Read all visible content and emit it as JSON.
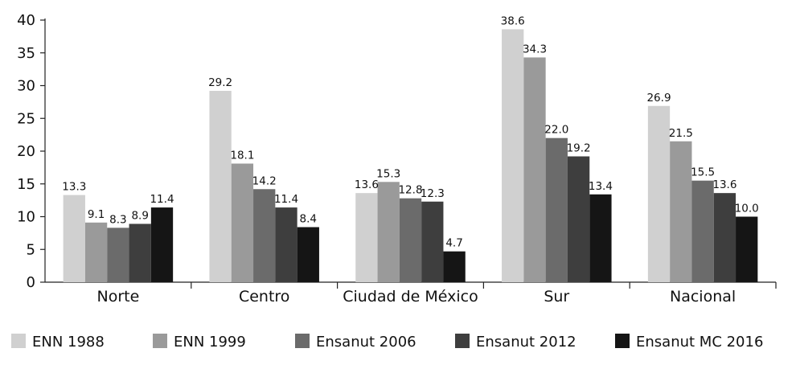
{
  "chart_data": {
    "type": "bar",
    "categories": [
      "Norte",
      "Centro",
      "Ciudad de México",
      "Sur",
      "Nacional"
    ],
    "series": [
      {
        "name": "ENN 1988",
        "color": "#d0d0d0",
        "values": [
          13.3,
          29.2,
          13.6,
          38.6,
          26.9
        ]
      },
      {
        "name": "ENN 1999",
        "color": "#9a9a9a",
        "values": [
          9.1,
          18.1,
          15.3,
          34.3,
          21.5
        ]
      },
      {
        "name": "Ensanut 2006",
        "color": "#6b6b6b",
        "values": [
          8.3,
          14.2,
          12.8,
          22.0,
          15.5
        ]
      },
      {
        "name": "Ensanut 2012",
        "color": "#3e3e3e",
        "values": [
          8.9,
          11.4,
          12.3,
          19.2,
          13.6
        ]
      },
      {
        "name": "Ensanut MC 2016",
        "color": "#151515",
        "values": [
          11.4,
          8.4,
          4.7,
          13.4,
          10.0
        ]
      }
    ],
    "value_labels": [
      [
        "13.3",
        "29.2",
        "13.6",
        "38.6",
        "26.9"
      ],
      [
        "9.1",
        "18.1",
        "15.3",
        "34.3",
        "21.5"
      ],
      [
        "8.3",
        "14.2",
        "12.8",
        "22.0",
        "15.5"
      ],
      [
        "8.9",
        "11.4",
        "12.3",
        "19.2",
        "13.6"
      ],
      [
        "11.4",
        "8.4",
        "4.7",
        "13.4",
        "10.0"
      ]
    ],
    "yticks": [
      "0",
      "5",
      "10",
      "15",
      "20",
      "25",
      "30",
      "35",
      "40"
    ],
    "ylim": [
      0,
      40
    ],
    "title": "",
    "xlabel": "",
    "ylabel": "",
    "grid": false,
    "legend_position": "bottom"
  }
}
